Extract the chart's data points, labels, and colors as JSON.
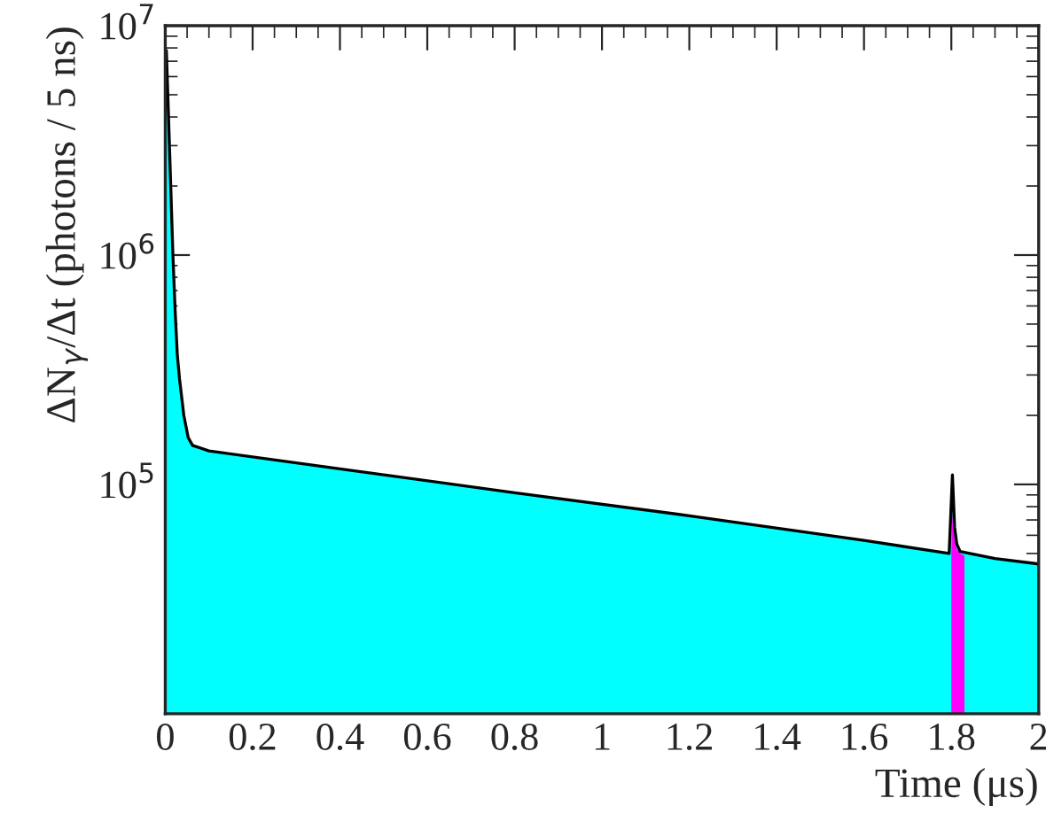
{
  "chart_data": {
    "type": "area",
    "xlabel": "Time (μs)",
    "ylabel": "ΔN$_{γ}$/Δt (photons / 5 ns)",
    "log": "y",
    "xlim": [
      0,
      2
    ],
    "xticks": [
      0,
      0.2,
      0.4,
      0.6,
      0.8,
      1,
      1.2,
      1.4,
      1.6,
      1.8,
      2
    ],
    "ylim": [
      10000,
      10000000
    ],
    "yticks": [
      {
        "value": 100000,
        "label": "10$^{5}$"
      },
      {
        "value": 1000000,
        "label": "10$^{6}$"
      },
      {
        "value": 10000000,
        "label": "10$^{7}$"
      }
    ],
    "grid": false,
    "series": [
      {
        "color": "#00ffff",
        "x": [
          0.0025,
          0.0075,
          0.0125,
          0.0175,
          0.0225,
          0.0275,
          0.0325,
          0.0425,
          0.0525,
          0.0625,
          0.1,
          0.4,
          0.8,
          1.2,
          1.6,
          1.795,
          1.8025,
          1.8075,
          1.8125,
          1.82,
          1.9,
          2.0
        ],
        "values": [
          7800000,
          4000000,
          2000000,
          1000000,
          580000,
          370000,
          290000,
          200000,
          160000,
          148000,
          140000,
          117000,
          92000,
          73000,
          57000,
          50000,
          110000,
          65000,
          55000,
          51000,
          47500,
          45000
        ]
      },
      {
        "color": "#ff00ff",
        "x": [
          1.8,
          1.8025,
          1.8075,
          1.8125,
          1.82,
          1.83
        ],
        "values": [
          50000,
          76000,
          58000,
          52000,
          50000,
          49000
        ]
      }
    ]
  }
}
